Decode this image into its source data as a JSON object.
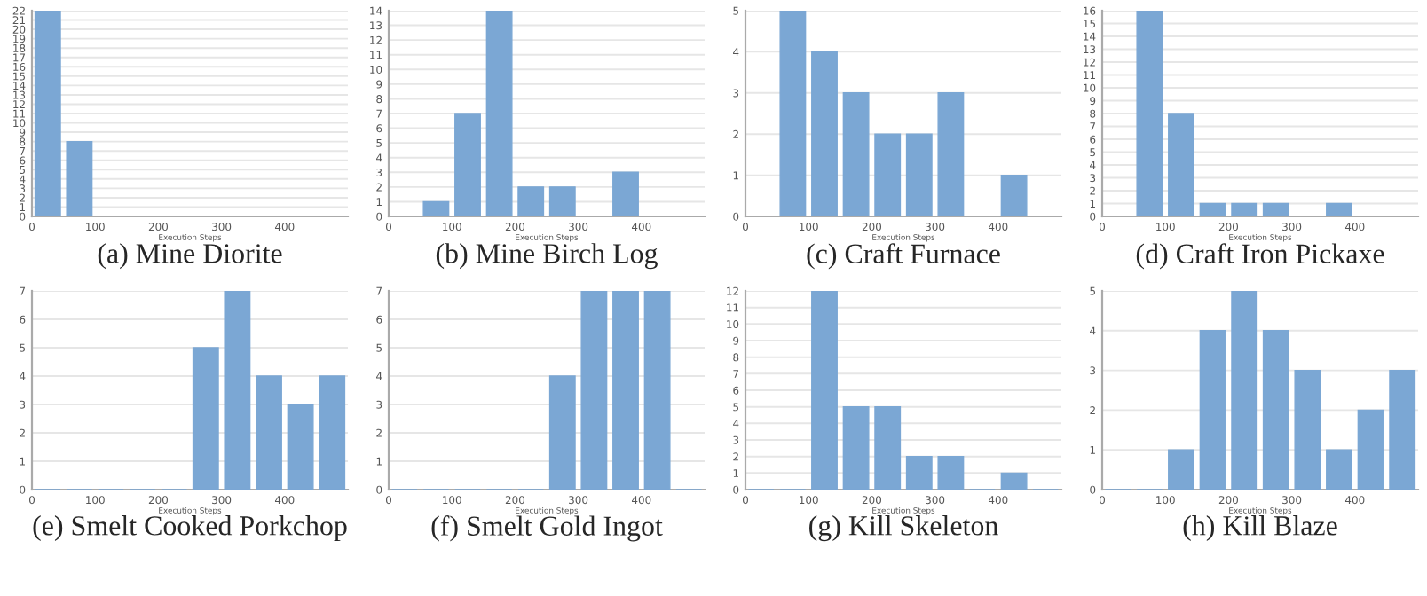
{
  "chart_data": [
    {
      "type": "histogram",
      "title": "(a) Mine Diorite",
      "xlabel": "Execution Steps",
      "bins": [
        0,
        50,
        100,
        150,
        200,
        250,
        300,
        350,
        400,
        450,
        500
      ],
      "values": [
        22,
        8,
        0,
        0,
        0,
        0,
        0,
        0,
        0,
        0
      ],
      "color": "#7ba7d4",
      "xlim": [
        0,
        500
      ],
      "xticks": [
        0,
        100,
        200,
        300,
        400
      ],
      "ylim": [
        0,
        22
      ],
      "yticks": [
        0,
        1,
        2,
        3,
        4,
        5,
        6,
        7,
        8,
        9,
        10,
        11,
        12,
        13,
        14,
        15,
        16,
        17,
        18,
        19,
        20,
        21,
        22
      ],
      "grid": "y"
    },
    {
      "type": "histogram",
      "title": "(b) Mine Birch Log",
      "xlabel": "Execution Steps",
      "bins": [
        0,
        50,
        100,
        150,
        200,
        250,
        300,
        350,
        400,
        450,
        500
      ],
      "values": [
        0,
        1,
        7,
        14,
        2,
        2,
        0,
        3,
        0,
        0
      ],
      "color": "#7ba7d4",
      "xlim": [
        0,
        500
      ],
      "xticks": [
        0,
        100,
        200,
        300,
        400
      ],
      "ylim": [
        0,
        14
      ],
      "yticks": [
        0,
        1,
        2,
        3,
        4,
        5,
        6,
        7,
        8,
        9,
        10,
        11,
        12,
        13,
        14
      ],
      "grid": "y"
    },
    {
      "type": "histogram",
      "title": "(c) Craft Furnace",
      "xlabel": "Execution Steps",
      "bins": [
        0,
        50,
        100,
        150,
        200,
        250,
        300,
        350,
        400,
        450,
        500
      ],
      "values": [
        0,
        5,
        4,
        3,
        2,
        2,
        3,
        0,
        1,
        0
      ],
      "color": "#7ba7d4",
      "xlim": [
        0,
        500
      ],
      "xticks": [
        0,
        100,
        200,
        300,
        400
      ],
      "ylim": [
        0,
        5
      ],
      "yticks": [
        0,
        1,
        2,
        3,
        4,
        5
      ],
      "grid": "y"
    },
    {
      "type": "histogram",
      "title": "(d) Craft Iron Pickaxe",
      "xlabel": "Execution Steps",
      "bins": [
        0,
        50,
        100,
        150,
        200,
        250,
        300,
        350,
        400,
        450,
        500
      ],
      "values": [
        0,
        16,
        8,
        1,
        1,
        1,
        0,
        1,
        0,
        0
      ],
      "color": "#7ba7d4",
      "xlim": [
        0,
        500
      ],
      "xticks": [
        0,
        100,
        200,
        300,
        400
      ],
      "ylim": [
        0,
        16
      ],
      "yticks": [
        0,
        1,
        2,
        3,
        4,
        5,
        6,
        7,
        8,
        9,
        10,
        11,
        12,
        13,
        14,
        15,
        16
      ],
      "grid": "y"
    },
    {
      "type": "histogram",
      "title": "(e) Smelt Cooked Porkchop",
      "xlabel": "Execution Steps",
      "bins": [
        0,
        50,
        100,
        150,
        200,
        250,
        300,
        350,
        400,
        450,
        500
      ],
      "values": [
        0,
        0,
        0,
        0,
        0,
        5,
        7,
        4,
        3,
        4
      ],
      "color": "#7ba7d4",
      "xlim": [
        0,
        500
      ],
      "xticks": [
        0,
        100,
        200,
        300,
        400
      ],
      "ylim": [
        0,
        7
      ],
      "yticks": [
        0,
        1,
        2,
        3,
        4,
        5,
        6,
        7
      ],
      "grid": "y"
    },
    {
      "type": "histogram",
      "title": "(f) Smelt Gold Ingot",
      "xlabel": "Execution Steps",
      "bins": [
        0,
        50,
        100,
        150,
        200,
        250,
        300,
        350,
        400,
        450,
        500
      ],
      "values": [
        0,
        0,
        0,
        0,
        0,
        4,
        7,
        7,
        7,
        0
      ],
      "color": "#7ba7d4",
      "xlim": [
        0,
        500
      ],
      "xticks": [
        0,
        100,
        200,
        300,
        400
      ],
      "ylim": [
        0,
        7
      ],
      "yticks": [
        0,
        1,
        2,
        3,
        4,
        5,
        6,
        7
      ],
      "grid": "y"
    },
    {
      "type": "histogram",
      "title": "(g) Kill Skeleton",
      "xlabel": "Execution Steps",
      "bins": [
        0,
        50,
        100,
        150,
        200,
        250,
        300,
        350,
        400,
        450,
        500
      ],
      "values": [
        0,
        0,
        12,
        5,
        5,
        2,
        2,
        0,
        1,
        0
      ],
      "color": "#7ba7d4",
      "xlim": [
        0,
        500
      ],
      "xticks": [
        0,
        100,
        200,
        300,
        400
      ],
      "ylim": [
        0,
        12
      ],
      "yticks": [
        0,
        1,
        2,
        3,
        4,
        5,
        6,
        7,
        8,
        9,
        10,
        11,
        12
      ],
      "grid": "y"
    },
    {
      "type": "histogram",
      "title": "(h) Kill Blaze",
      "xlabel": "Execution Steps",
      "bins": [
        0,
        50,
        100,
        150,
        200,
        250,
        300,
        350,
        400,
        450,
        500
      ],
      "values": [
        0,
        0,
        1,
        4,
        5,
        4,
        3,
        1,
        2,
        3
      ],
      "color": "#7ba7d4",
      "xlim": [
        0,
        500
      ],
      "xticks": [
        0,
        100,
        200,
        300,
        400
      ],
      "ylim": [
        0,
        5
      ],
      "yticks": [
        0,
        1,
        2,
        3,
        4,
        5
      ],
      "grid": "y"
    }
  ]
}
